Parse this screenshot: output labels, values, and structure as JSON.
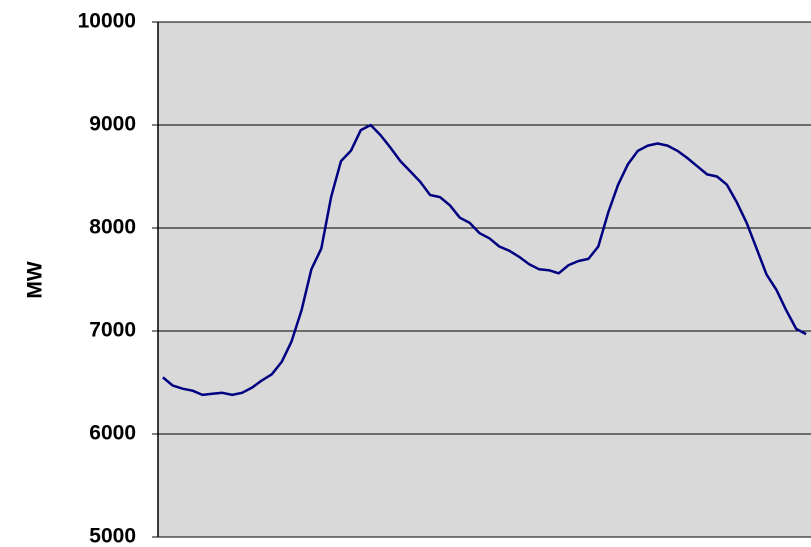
{
  "chart_data": {
    "type": "line",
    "ylabel": "MW",
    "categories": [
      null,
      null,
      null,
      null,
      null,
      null,
      null,
      null,
      null,
      null,
      null,
      null,
      null,
      null,
      null,
      null,
      null,
      null,
      null,
      null,
      null,
      null,
      null,
      null,
      null,
      null,
      null,
      null,
      null,
      null,
      null,
      null,
      null,
      null,
      null,
      null,
      null,
      null,
      null,
      null,
      null,
      null,
      null,
      null,
      null,
      null,
      null,
      null,
      null,
      null,
      null,
      null,
      null,
      null,
      null,
      null,
      null,
      null,
      null,
      null,
      null,
      null,
      null,
      null,
      null,
      null
    ],
    "series": [
      {
        "color": "#000080",
        "values": [
          6550,
          6470,
          6440,
          6420,
          6380,
          6390,
          6400,
          6380,
          6400,
          6450,
          6520,
          6580,
          6700,
          6900,
          7200,
          7600,
          7800,
          8300,
          8650,
          8750,
          8950,
          9000,
          8900,
          8780,
          8650,
          8550,
          8450,
          8320,
          8300,
          8220,
          8100,
          8050,
          7950,
          7900,
          7820,
          7780,
          7720,
          7650,
          7600,
          7590,
          7560,
          7640,
          7680,
          7700,
          7820,
          8150,
          8420,
          8620,
          8750,
          8800,
          8820,
          8800,
          8750,
          8680,
          8600,
          8520,
          8500,
          8420,
          8250,
          8050,
          7800,
          7550,
          7400,
          7200,
          7020,
          6970
        ]
      }
    ],
    "ylim": [
      5000,
      10000
    ],
    "yticks": [
      5000,
      6000,
      7000,
      8000,
      9000,
      10000
    ],
    "grid": true
  }
}
